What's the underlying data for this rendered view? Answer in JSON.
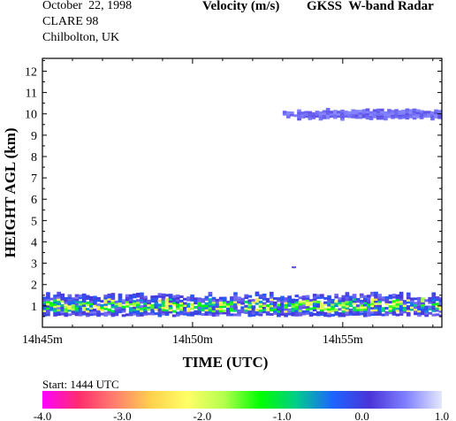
{
  "header": {
    "date": "October  22, 1998",
    "campaign": "CLARE 98",
    "location": "Chilbolton, UK",
    "quantity": "Velocity (m/s)",
    "instrument": "GKSS  W-band Radar"
  },
  "colorbar": {
    "start_label": "Start: 1444 UTC",
    "ticks": [
      "-4.0",
      "-3.0",
      "-2.0",
      "-1.0",
      "0.0",
      "1.0"
    ],
    "range": [
      -4.0,
      1.0
    ],
    "stops": [
      "#ff00ff",
      "#ff2d6e",
      "#ff7f6e",
      "#ffd24d",
      "#ffff66",
      "#b4ff4d",
      "#00ff00",
      "#00cc8c",
      "#1e64ff",
      "#4a34d8",
      "#7f7fff",
      "#e4e8ff"
    ]
  },
  "chart_data": {
    "type": "heatmap",
    "title": "Velocity (m/s)",
    "xlabel": "TIME (UTC)",
    "ylabel": "HEIGHT AGL (km)",
    "x_unit": "minutes after 14h45m",
    "xlim": [
      0,
      13.3
    ],
    "ylim": [
      0,
      12.6
    ],
    "x_ticks": [
      "14h45m",
      "14h50m",
      "14h55m"
    ],
    "y_ticks": [
      "1",
      "2",
      "3",
      "4",
      "5",
      "6",
      "7",
      "8",
      "9",
      "10",
      "11",
      "12"
    ],
    "features": [
      {
        "name": "low-level cloud layer",
        "x_range": [
          0,
          13.3
        ],
        "height_range_km": [
          0.5,
          1.6
        ],
        "velocity_range_ms": [
          -2.5,
          0.5
        ]
      },
      {
        "name": "upper cloud layer",
        "x_range": [
          8.0,
          13.3
        ],
        "height_range_km": [
          9.7,
          10.2
        ],
        "velocity_range_ms": [
          0.0,
          0.6
        ]
      },
      {
        "name": "isolated echo",
        "x": 8.3,
        "height_km": 2.8,
        "velocity_ms": 0.2
      }
    ]
  },
  "colors": {
    "frame": "#000000",
    "background": "#ffffff"
  }
}
